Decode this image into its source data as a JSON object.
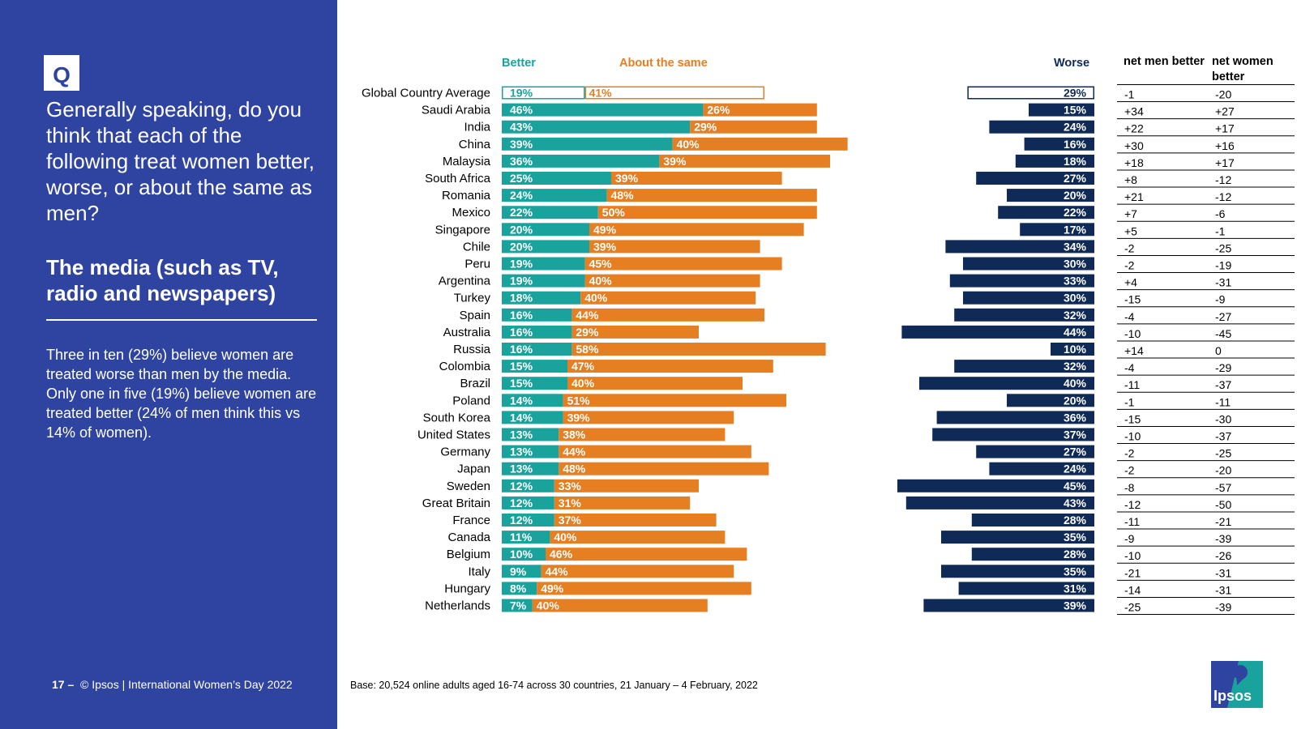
{
  "panel": {
    "badge": "Q",
    "question": "Generally speaking, do you think that each of the following treat women better, worse, or about the same as men?",
    "subtopic": "The media (such as TV, radio and newspapers)",
    "summary": "Three in ten (29%) believe women are treated worse than men by the media. Only one in five (19%) believe women are treated better (24% of men think this vs 14% of women).",
    "footer_page": "17 –",
    "footer_text": "© Ipsos | International Women’s Day 2022"
  },
  "base_note": "Base: 20,524 online adults aged 16-74 across 30 countries, 21 January – 4 February, 2022",
  "logo_text": "Ipsos",
  "colors": {
    "better": "#1aa39c",
    "same": "#e67e22",
    "worse": "#0f2a57",
    "panel": "#2f44a0"
  },
  "chart_data": {
    "type": "bar",
    "headers": {
      "better": "Better",
      "same": "About the same",
      "worse": "Worse",
      "net_men": "net men better",
      "net_women": "net women better"
    },
    "rows": [
      {
        "country": "Global Country Average",
        "better": 19,
        "same": 41,
        "worse": 29,
        "net_men": "-1",
        "net_women": "-20",
        "outline": true
      },
      {
        "country": "Saudi Arabia",
        "better": 46,
        "same": 26,
        "worse": 15,
        "net_men": "+34",
        "net_women": "+27"
      },
      {
        "country": "India",
        "better": 43,
        "same": 29,
        "worse": 24,
        "net_men": "+22",
        "net_women": "+17"
      },
      {
        "country": "China",
        "better": 39,
        "same": 40,
        "worse": 16,
        "net_men": "+30",
        "net_women": "+16"
      },
      {
        "country": "Malaysia",
        "better": 36,
        "same": 39,
        "worse": 18,
        "net_men": "+18",
        "net_women": "+17"
      },
      {
        "country": "South Africa",
        "better": 25,
        "same": 39,
        "worse": 27,
        "net_men": "+8",
        "net_women": "-12"
      },
      {
        "country": "Romania",
        "better": 24,
        "same": 48,
        "worse": 20,
        "net_men": "+21",
        "net_women": "-12"
      },
      {
        "country": "Mexico",
        "better": 22,
        "same": 50,
        "worse": 22,
        "net_men": "+7",
        "net_women": "-6"
      },
      {
        "country": "Singapore",
        "better": 20,
        "same": 49,
        "worse": 17,
        "net_men": "+5",
        "net_women": "-1"
      },
      {
        "country": "Chile",
        "better": 20,
        "same": 39,
        "worse": 34,
        "net_men": "-2",
        "net_women": "-25"
      },
      {
        "country": "Peru",
        "better": 19,
        "same": 45,
        "worse": 30,
        "net_men": "-2",
        "net_women": "-19"
      },
      {
        "country": "Argentina",
        "better": 19,
        "same": 40,
        "worse": 33,
        "net_men": "+4",
        "net_women": "-31"
      },
      {
        "country": "Turkey",
        "better": 18,
        "same": 40,
        "worse": 30,
        "net_men": "-15",
        "net_women": "-9"
      },
      {
        "country": "Spain",
        "better": 16,
        "same": 44,
        "worse": 32,
        "net_men": "-4",
        "net_women": "-27"
      },
      {
        "country": "Australia",
        "better": 16,
        "same": 29,
        "worse": 44,
        "net_men": "-10",
        "net_women": "-45"
      },
      {
        "country": "Russia",
        "better": 16,
        "same": 58,
        "worse": 10,
        "net_men": "+14",
        "net_women": "0"
      },
      {
        "country": "Colombia",
        "better": 15,
        "same": 47,
        "worse": 32,
        "net_men": "-4",
        "net_women": "-29"
      },
      {
        "country": "Brazil",
        "better": 15,
        "same": 40,
        "worse": 40,
        "net_men": "-11",
        "net_women": "-37"
      },
      {
        "country": "Poland",
        "better": 14,
        "same": 51,
        "worse": 20,
        "net_men": "-1",
        "net_women": "-11"
      },
      {
        "country": "South Korea",
        "better": 14,
        "same": 39,
        "worse": 36,
        "net_men": "-15",
        "net_women": "-30"
      },
      {
        "country": "United States",
        "better": 13,
        "same": 38,
        "worse": 37,
        "net_men": "-10",
        "net_women": "-37"
      },
      {
        "country": "Germany",
        "better": 13,
        "same": 44,
        "worse": 27,
        "net_men": "-2",
        "net_women": "-25"
      },
      {
        "country": "Japan",
        "better": 13,
        "same": 48,
        "worse": 24,
        "net_men": "-2",
        "net_women": "-20"
      },
      {
        "country": "Sweden",
        "better": 12,
        "same": 33,
        "worse": 45,
        "net_men": "-8",
        "net_women": "-57"
      },
      {
        "country": "Great Britain",
        "better": 12,
        "same": 31,
        "worse": 43,
        "net_men": "-12",
        "net_women": "-50"
      },
      {
        "country": "France",
        "better": 12,
        "same": 37,
        "worse": 28,
        "net_men": "-11",
        "net_women": "-21"
      },
      {
        "country": "Canada",
        "better": 11,
        "same": 40,
        "worse": 35,
        "net_men": "-9",
        "net_women": "-39"
      },
      {
        "country": "Belgium",
        "better": 10,
        "same": 46,
        "worse": 28,
        "net_men": "-10",
        "net_women": "-26"
      },
      {
        "country": "Italy",
        "better": 9,
        "same": 44,
        "worse": 35,
        "net_men": "-21",
        "net_women": "-31"
      },
      {
        "country": "Hungary",
        "better": 8,
        "same": 49,
        "worse": 31,
        "net_men": "-14",
        "net_women": "-31"
      },
      {
        "country": "Netherlands",
        "better": 7,
        "same": 40,
        "worse": 39,
        "net_men": "-25",
        "net_women": "-39"
      }
    ]
  }
}
